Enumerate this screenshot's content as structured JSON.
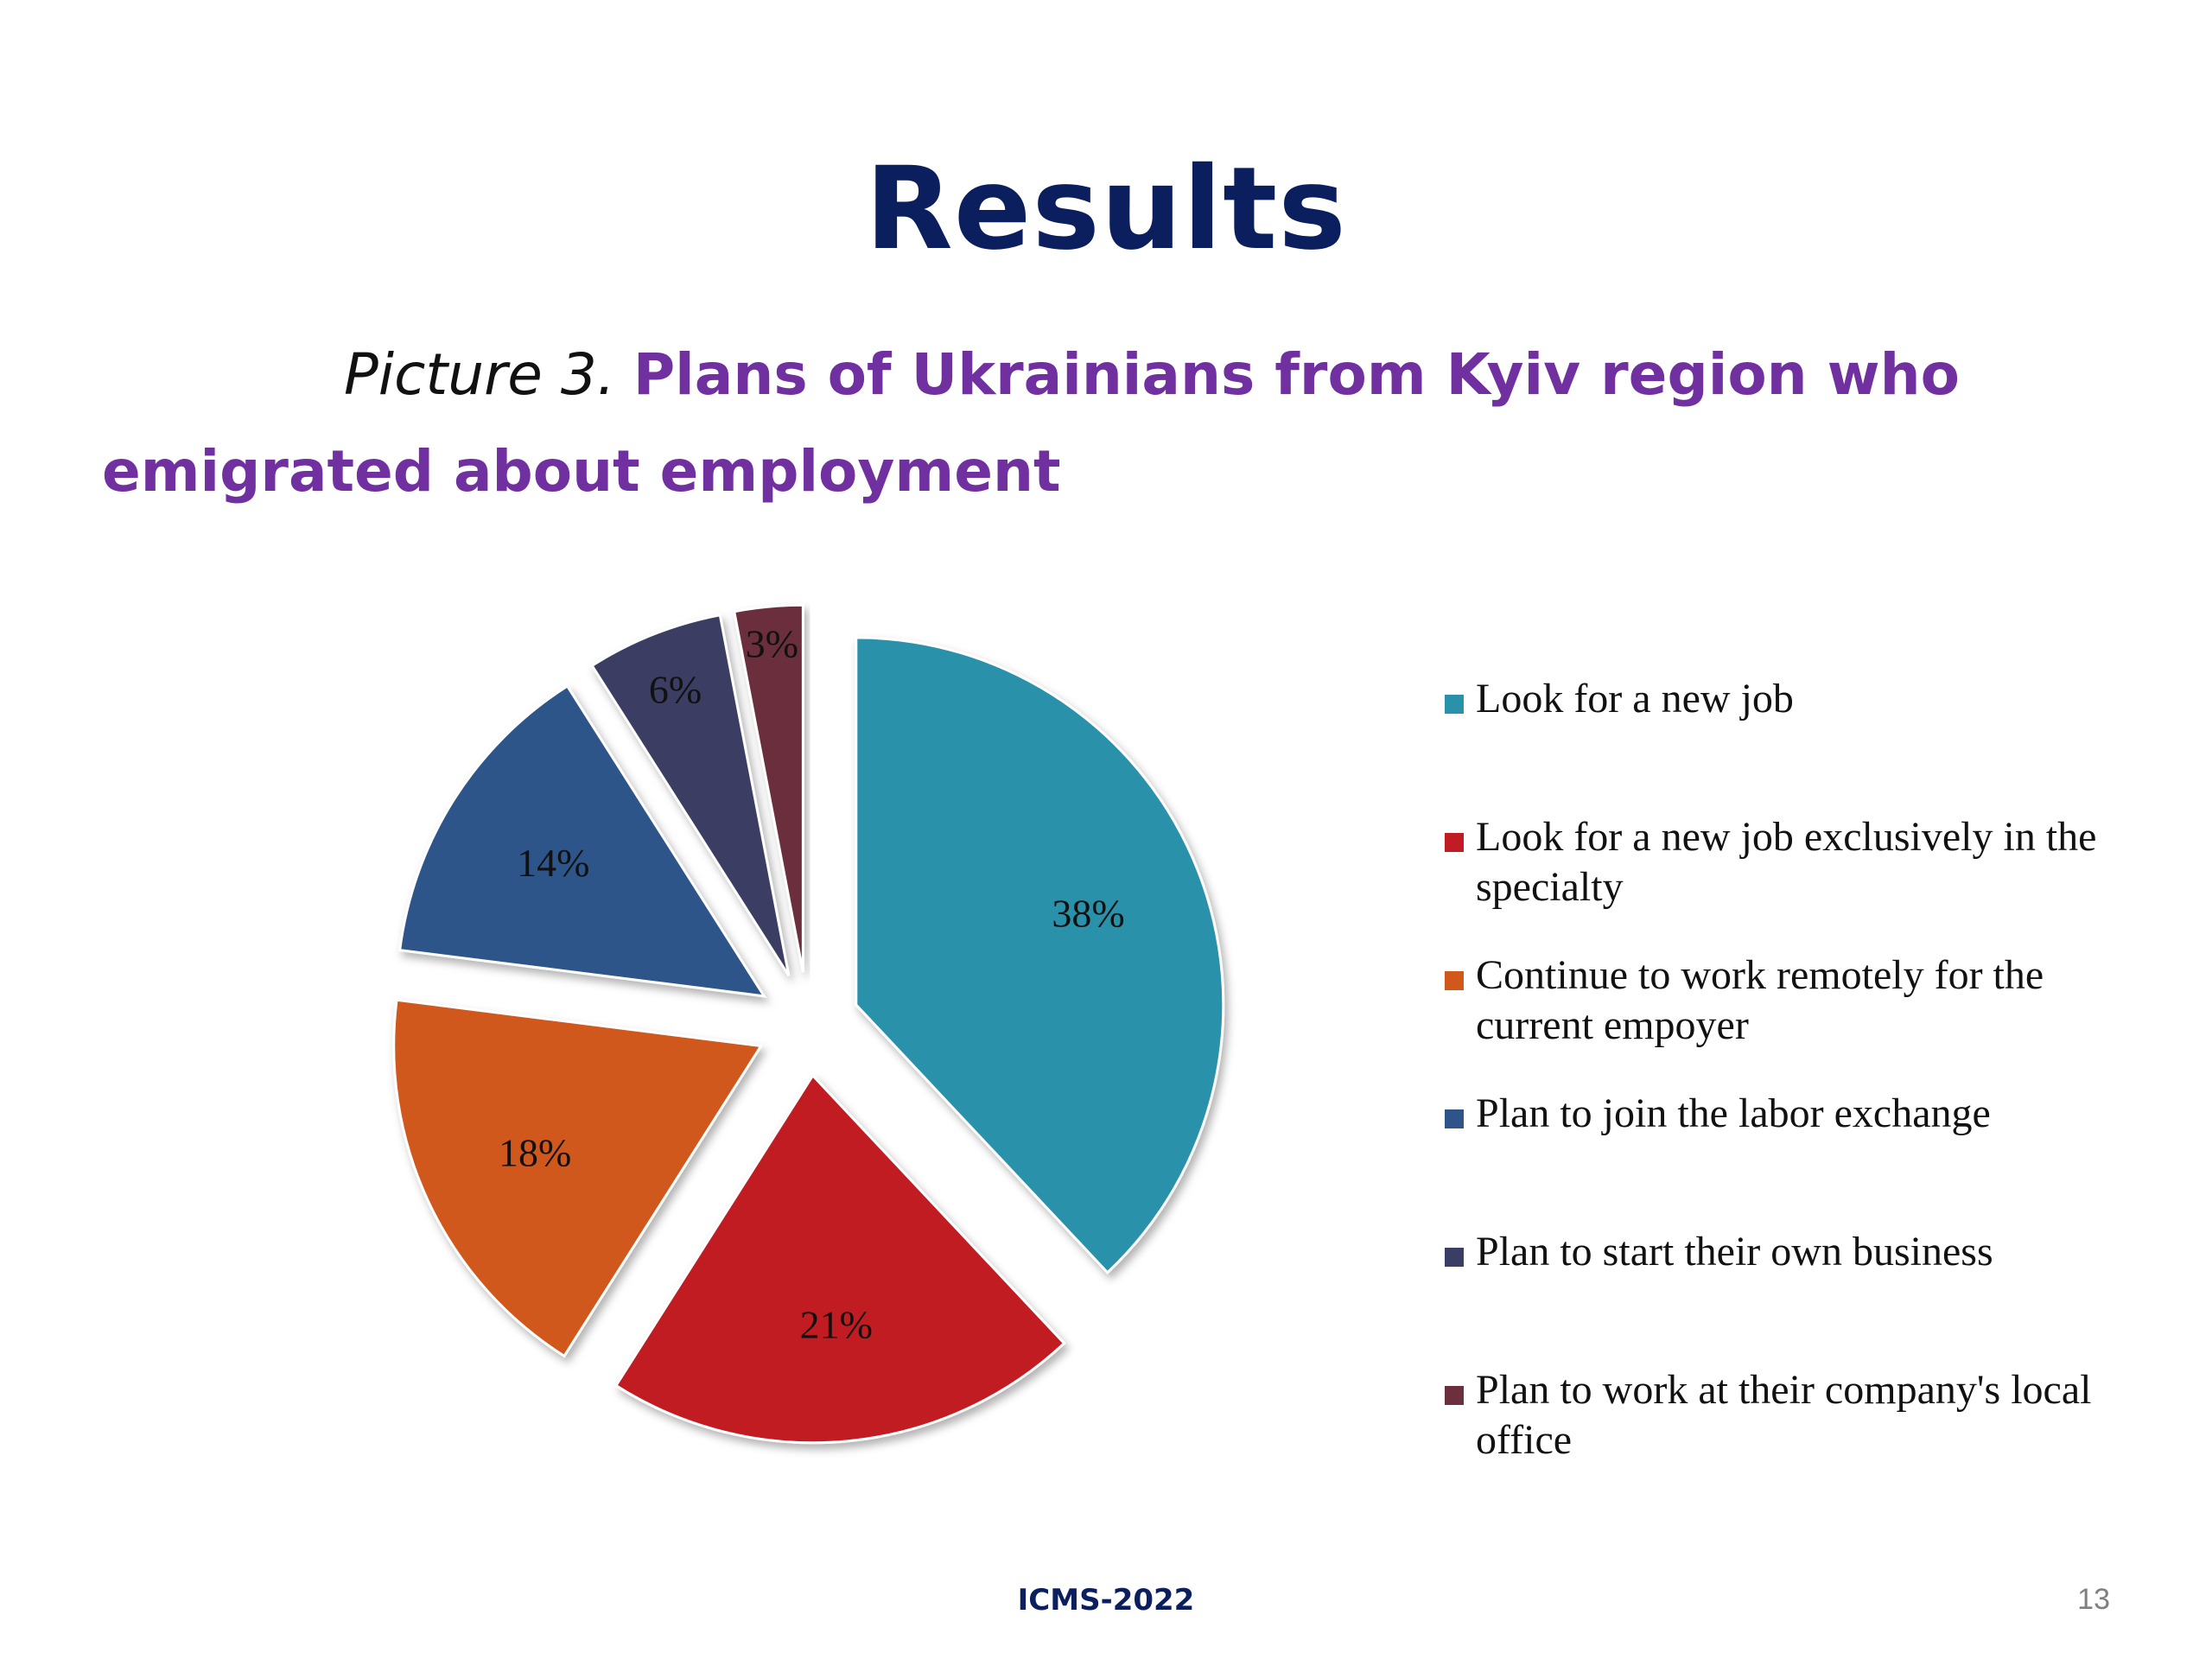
{
  "slide": {
    "title": "Results",
    "caption_prefix": "Picture 3.",
    "caption_main": "Plans of Ukrainians from Kyiv region who emigrated about employment",
    "footer": "ICMS-2022",
    "page_number": "13"
  },
  "chart_data": {
    "type": "pie",
    "exploded": true,
    "legend_position": "right",
    "categories": [
      "Look for a new job",
      "Look for a new job exclusively in the specialty",
      "Continue to work remotely for the current empoyer",
      "Plan to join the labor exchange",
      "Plan to start their own business",
      "Plan to work at their company's local office"
    ],
    "values": [
      38,
      21,
      18,
      14,
      6,
      3
    ],
    "data_labels": [
      "38%",
      "21%",
      "18%",
      "14%",
      "6%",
      "3%"
    ],
    "colors": [
      "#2a91aa",
      "#c11b24",
      "#d0581a",
      "#2e5489",
      "#3b3e64",
      "#6b2f3e"
    ]
  }
}
